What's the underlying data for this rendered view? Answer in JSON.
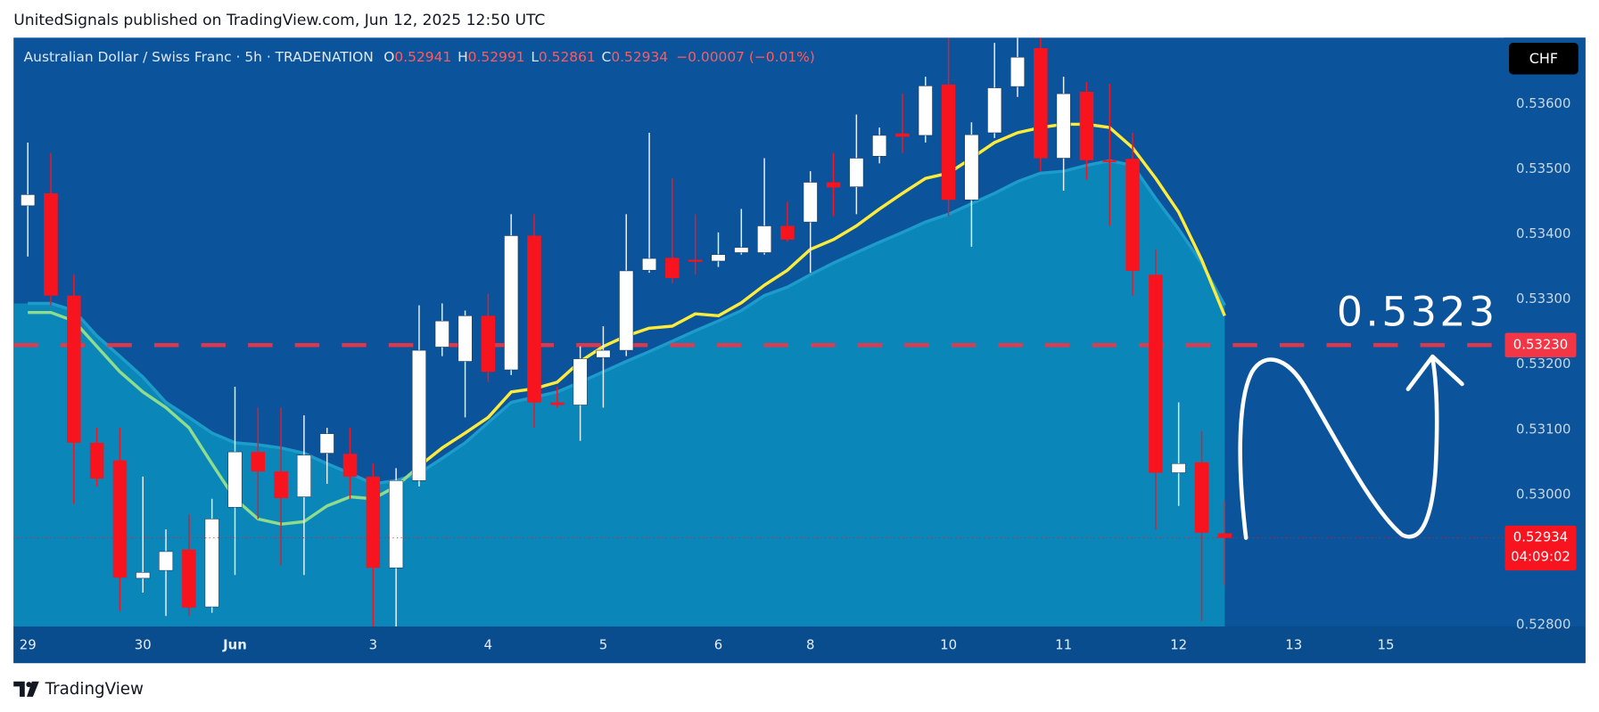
{
  "header": {
    "text": "UnitedSignals published on TradingView.com, Jun 12, 2025 12:50 UTC"
  },
  "footer": {
    "brand": "TradingView"
  },
  "chart_data": {
    "type": "candlestick",
    "title": "Australian Dollar / Swiss Franc · 5h · TRADENATION",
    "ohlc_letters": [
      "O",
      "H",
      "L",
      "C"
    ],
    "change": "−0.00007 (−0.01%)",
    "currency": "CHF",
    "countdown": "04:09:02",
    "up_color": "#ffffff",
    "down_color": "#f7141e",
    "candles": [
      [
        0.53444,
        0.53541,
        0.53366,
        0.53461
      ],
      [
        0.53463,
        0.53525,
        0.53291,
        0.53306
      ],
      [
        0.53306,
        0.53338,
        0.52986,
        0.5308
      ],
      [
        0.5308,
        0.53103,
        0.53013,
        0.53025
      ],
      [
        0.53053,
        0.53103,
        0.52822,
        0.52873
      ],
      [
        0.52872,
        0.53028,
        0.5285,
        0.52881
      ],
      [
        0.52884,
        0.52947,
        0.52814,
        0.52913
      ],
      [
        0.52916,
        0.5297,
        0.52814,
        0.52827
      ],
      [
        0.52828,
        0.52994,
        0.52819,
        0.52963
      ],
      [
        0.52981,
        0.53166,
        0.52877,
        0.53066
      ],
      [
        0.53066,
        0.53134,
        0.52963,
        0.53036
      ],
      [
        0.53036,
        0.53134,
        0.52892,
        0.52995
      ],
      [
        0.52997,
        0.53122,
        0.52877,
        0.53061
      ],
      [
        0.53064,
        0.53103,
        0.53017,
        0.53094
      ],
      [
        0.53063,
        0.53103,
        0.52994,
        0.53028
      ],
      [
        0.53028,
        0.53048,
        0.52798,
        0.52888
      ],
      [
        0.52888,
        0.53041,
        0.52798,
        0.53022
      ],
      [
        0.53022,
        0.53291,
        0.53013,
        0.53222
      ],
      [
        0.53227,
        0.53294,
        0.53213,
        0.53267
      ],
      [
        0.53205,
        0.53283,
        0.53119,
        0.53275
      ],
      [
        0.53275,
        0.53309,
        0.53173,
        0.53189
      ],
      [
        0.53192,
        0.53431,
        0.53184,
        0.53398
      ],
      [
        0.53398,
        0.53431,
        0.53103,
        0.53142
      ],
      [
        0.53142,
        0.53166,
        0.53134,
        0.53138
      ],
      [
        0.53138,
        0.53228,
        0.53083,
        0.53209
      ],
      [
        0.53211,
        0.53259,
        0.53134,
        0.53222
      ],
      [
        0.53222,
        0.53431,
        0.53213,
        0.53344
      ],
      [
        0.53345,
        0.53556,
        0.53341,
        0.53363
      ],
      [
        0.53364,
        0.53486,
        0.53325,
        0.53333
      ],
      [
        0.53361,
        0.53431,
        0.53338,
        0.53358
      ],
      [
        0.53359,
        0.53403,
        0.5335,
        0.53369
      ],
      [
        0.53372,
        0.53439,
        0.53369,
        0.5338
      ],
      [
        0.53372,
        0.53517,
        0.53369,
        0.53413
      ],
      [
        0.53413,
        0.5345,
        0.53389,
        0.53392
      ],
      [
        0.53419,
        0.53497,
        0.53341,
        0.5348
      ],
      [
        0.5348,
        0.53525,
        0.53428,
        0.53472
      ],
      [
        0.53473,
        0.53584,
        0.53431,
        0.53517
      ],
      [
        0.5352,
        0.53564,
        0.53509,
        0.53552
      ],
      [
        0.53555,
        0.53616,
        0.53525,
        0.5355
      ],
      [
        0.53552,
        0.53642,
        0.53541,
        0.53628
      ],
      [
        0.5363,
        0.53702,
        0.53428,
        0.53453
      ],
      [
        0.53453,
        0.53572,
        0.53381,
        0.53553
      ],
      [
        0.53556,
        0.53694,
        0.53548,
        0.53625
      ],
      [
        0.53627,
        0.53702,
        0.53611,
        0.53672
      ],
      [
        0.53686,
        0.53702,
        0.53497,
        0.53517
      ],
      [
        0.53517,
        0.53642,
        0.53467,
        0.53616
      ],
      [
        0.53619,
        0.53634,
        0.53484,
        0.53514
      ],
      [
        0.53514,
        0.53631,
        0.53413,
        0.53511
      ],
      [
        0.53516,
        0.53556,
        0.53306,
        0.53344
      ],
      [
        0.53338,
        0.53377,
        0.52947,
        0.53034
      ],
      [
        0.53034,
        0.53142,
        0.52983,
        0.53048
      ],
      [
        0.5305,
        0.53098,
        0.52806,
        0.52942
      ],
      [
        0.52941,
        0.52991,
        0.52861,
        0.52934
      ]
    ],
    "ma_lines": [
      {
        "color": "#8fdc8c",
        "values": [
          0.5328,
          0.5328,
          0.53267,
          0.53228,
          0.53189,
          0.53158,
          0.53134,
          0.53103,
          0.53048,
          0.52994,
          0.52963,
          0.52955,
          0.52959,
          0.52983,
          0.52997,
          0.52994,
          0.53013,
          0.53044,
          null,
          null,
          null,
          null,
          null,
          null,
          null,
          null,
          null,
          null,
          null,
          null,
          null,
          null,
          null,
          null,
          null,
          null,
          null,
          null,
          null,
          null,
          null,
          null,
          null,
          null,
          null,
          null,
          null,
          null,
          null,
          null,
          null,
          null,
          null
        ]
      },
      {
        "color": "#ffeb3b",
        "values": [
          null,
          null,
          null,
          null,
          null,
          null,
          null,
          null,
          null,
          null,
          null,
          null,
          null,
          null,
          null,
          null,
          null,
          0.53044,
          0.53072,
          0.53095,
          0.53119,
          0.53158,
          0.53163,
          0.53173,
          0.53205,
          0.53228,
          0.53244,
          0.53256,
          0.53259,
          0.53278,
          0.53275,
          0.53295,
          0.53322,
          0.53345,
          0.53377,
          0.53392,
          0.53413,
          0.53439,
          0.53463,
          0.53486,
          0.53494,
          0.53517,
          0.53541,
          0.53556,
          0.53564,
          0.53569,
          0.53569,
          0.53564,
          0.53533,
          0.53486,
          0.53434,
          0.53361,
          0.53275
        ]
      }
    ],
    "ma_area": {
      "color": "#0a86b9",
      "line_color": "#1d9ccc",
      "values": [
        0.53294,
        0.53294,
        0.53283,
        0.53244,
        0.53213,
        0.53181,
        0.53142,
        0.53119,
        0.53095,
        0.5308,
        0.53077,
        0.53072,
        0.53064,
        0.53048,
        0.53033,
        0.53017,
        0.53022,
        0.53033,
        0.53056,
        0.5308,
        0.53111,
        0.53142,
        0.5315,
        0.53158,
        0.53173,
        0.53189,
        0.53205,
        0.5322,
        0.53236,
        0.53252,
        0.53267,
        0.53283,
        0.53306,
        0.53319,
        0.53338,
        0.53356,
        0.53372,
        0.53388,
        0.53403,
        0.53419,
        0.53431,
        0.53447,
        0.53463,
        0.53481,
        0.53494,
        0.53497,
        0.53506,
        0.53513,
        0.53506,
        0.53455,
        0.53408,
        0.53356,
        0.53291
      ]
    },
    "level": 0.5323,
    "level_label": "0.53230",
    "level_color": "#f23645",
    "xlim": [
      -0.62,
      64.13
    ],
    "xticks": [
      {
        "value": 0,
        "label": "29"
      },
      {
        "value": 5,
        "label": "30"
      },
      {
        "value": 9,
        "label": "Jun"
      },
      {
        "value": 15,
        "label": "3"
      },
      {
        "value": 20,
        "label": "4"
      },
      {
        "value": 25,
        "label": "5"
      },
      {
        "value": 30,
        "label": "6"
      },
      {
        "value": 34,
        "label": "8"
      },
      {
        "value": 40,
        "label": "10"
      },
      {
        "value": 45,
        "label": "11"
      },
      {
        "value": 50,
        "label": "12"
      },
      {
        "value": 55,
        "label": "13"
      },
      {
        "value": 59,
        "label": "15"
      }
    ],
    "ylim": [
      0.52798,
      0.53702
    ],
    "yticks": [
      {
        "value": 0.528,
        "label": "0.52800"
      },
      {
        "value": 0.53,
        "label": "0.53000"
      },
      {
        "value": 0.531,
        "label": "0.53100"
      },
      {
        "value": 0.532,
        "label": "0.53200"
      },
      {
        "value": 0.533,
        "label": "0.53300"
      },
      {
        "value": 0.534,
        "label": "0.53400"
      },
      {
        "value": 0.535,
        "label": "0.53500"
      },
      {
        "value": 0.536,
        "label": "0.53600"
      }
    ],
    "grid": false
  }
}
